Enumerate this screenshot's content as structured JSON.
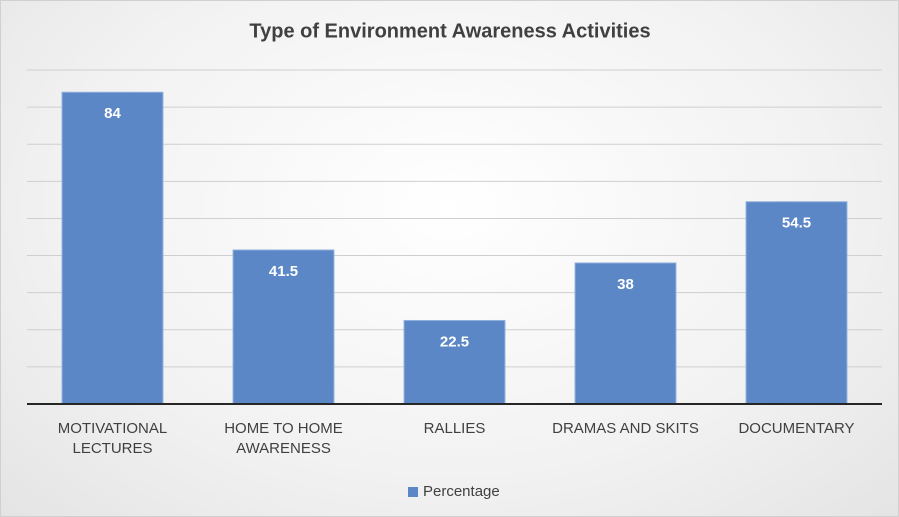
{
  "chart_data": {
    "type": "bar",
    "title": "Type of Environment Awareness Activities",
    "categories": [
      "MOTIVATIONAL LECTURES",
      "HOME TO HOME AWARENESS",
      "RALLIES",
      "DRAMAS AND SKITS",
      "DOCUMENTARY"
    ],
    "series": [
      {
        "name": "Percentage",
        "color": "#5b87c7",
        "values": [
          84,
          41.5,
          22.5,
          38,
          54.5
        ]
      }
    ],
    "ylim": [
      0,
      90
    ],
    "yticks": [
      0,
      10,
      20,
      30,
      40,
      50,
      60,
      70,
      80,
      90
    ],
    "grid": true,
    "legend": "bottom"
  }
}
